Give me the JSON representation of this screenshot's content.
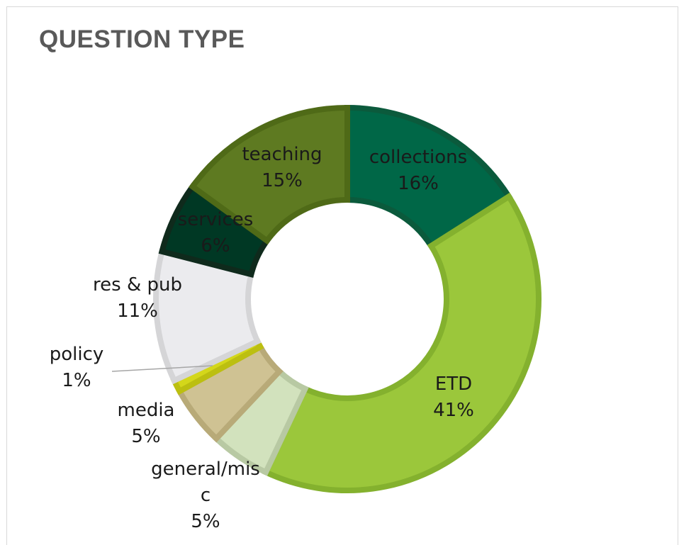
{
  "chart_data": {
    "type": "pie",
    "variant": "donut",
    "title": "QUESTION TYPE",
    "slices": [
      {
        "name": "collections",
        "percent_label": "16%",
        "value": 16,
        "color": "#006747",
        "stroke": "#0b5a3c"
      },
      {
        "name": "ETD",
        "percent_label": "41%",
        "value": 41,
        "color": "#9bc73b",
        "stroke": "#84b12e"
      },
      {
        "name": "general/misc",
        "percent_label": "5%",
        "value": 5,
        "color": "#d2e2bd",
        "stroke": "#b8c9a3"
      },
      {
        "name": "media",
        "percent_label": "5%",
        "value": 5,
        "color": "#cfc293",
        "stroke": "#b8aa78"
      },
      {
        "name": "policy",
        "percent_label": "1%",
        "value": 1,
        "color": "#d4d71a",
        "stroke": "#bcbf10"
      },
      {
        "name": "res & pub",
        "percent_label": "11%",
        "value": 11,
        "color": "#ebebee",
        "stroke": "#d5d5d7"
      },
      {
        "name": "services",
        "percent_label": "6%",
        "value": 6,
        "color": "#003824",
        "stroke": "#0f2a1c"
      },
      {
        "name": "teaching",
        "percent_label": "15%",
        "value": 15,
        "color": "#5e7a21",
        "stroke": "#4f6a17"
      }
    ],
    "start_angle_deg": 0,
    "direction": "clockwise",
    "legend": "none"
  }
}
